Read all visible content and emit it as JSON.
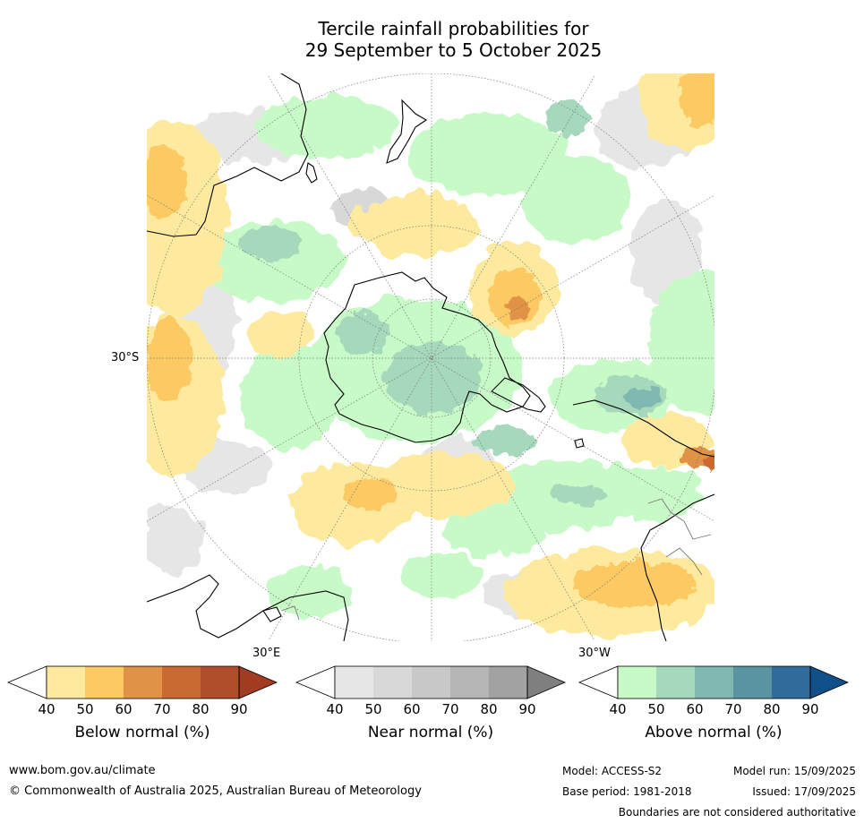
{
  "title": {
    "line1": "Tercile rainfall probabilities for",
    "line2": "29 September to 5 October 2025"
  },
  "map": {
    "labels": {
      "lat": "30°S",
      "lon_east": "30°E",
      "lon_west": "30°W"
    },
    "background_color": "#ffffff",
    "coastline_color": "#000000",
    "graticule_color": "#777777"
  },
  "colorbars": [
    {
      "title": "Below normal (%)",
      "ticks": [
        "40",
        "50",
        "60",
        "70",
        "80",
        "90"
      ],
      "colors": [
        "#ffffff",
        "#feea9e",
        "#fdc962",
        "#e09347",
        "#c96a33",
        "#b04e2c",
        "#a33b22"
      ]
    },
    {
      "title": "Near normal (%)",
      "ticks": [
        "40",
        "50",
        "60",
        "70",
        "80",
        "90"
      ],
      "colors": [
        "#ffffff",
        "#e6e6e6",
        "#d8d8d8",
        "#c8c8c8",
        "#b5b5b5",
        "#a2a2a2",
        "#7f7f7f"
      ]
    },
    {
      "title": "Above normal (%)",
      "ticks": [
        "40",
        "50",
        "60",
        "70",
        "80",
        "90"
      ],
      "colors": [
        "#ffffff",
        "#c8fac8",
        "#a6d8bc",
        "#7fb8b0",
        "#5a94a0",
        "#316a9c",
        "#0f4f8a"
      ]
    }
  ],
  "footer": {
    "website": "www.bom.gov.au/climate",
    "copyright": "© Commonwealth of Australia 2025, Australian Bureau of Meteorology",
    "model": "Model: ACCESS-S2",
    "base_period": "Base period: 1981-2018",
    "model_run": "Model run: 15/09/2025",
    "issued": "Issued: 17/09/2025",
    "disclaimer": "Boundaries are not considered authoritative"
  }
}
